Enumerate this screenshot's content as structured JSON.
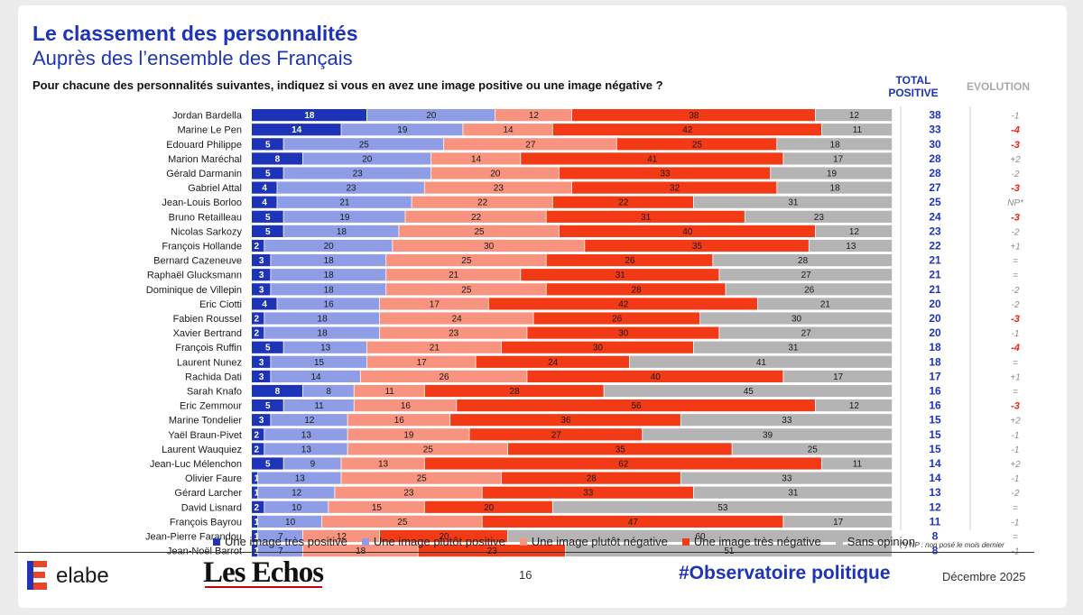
{
  "header": {
    "title": "Le classement des personnalités",
    "subtitle": "Auprès des l’ensemble des Français",
    "question": "Pour chacune des personnalités suivantes, indiquez si vous en avez une image positive ou une image négative ?",
    "total_label_1": "TOTAL",
    "total_label_2": "POSITIVE",
    "evolution_label": "EVOLUTION"
  },
  "colors": {
    "tres_positive": "#1d34b8",
    "plutot_positive": "#8e9de6",
    "plutot_negative": "#f7937e",
    "tres_negative": "#f23b16",
    "sans_opinion": "#b4b4b4",
    "brand_blue": "#1d34b8",
    "negative_evol": "#e8201a"
  },
  "chart_data": {
    "type": "bar",
    "orientation": "horizontal-stacked-100",
    "categories": [
      "Jordan Bardella",
      "Marine Le Pen",
      "Edouard Philippe",
      "Marion Maréchal",
      "Gérald Darmanin",
      "Gabriel Attal",
      "Jean-Louis Borloo",
      "Bruno Retailleau",
      "Nicolas Sarkozy",
      "François Hollande",
      "Bernard Cazeneuve",
      "Raphaël Glucksmann",
      "Dominique de Villepin",
      "Eric Ciotti",
      "Fabien Roussel",
      "Xavier Bertrand",
      "François Ruffin",
      "Laurent Nunez",
      "Rachida Dati",
      "Sarah Knafo",
      "Eric Zemmour",
      "Marine Tondelier",
      "Yaël Braun-Pivet",
      "Laurent Wauquiez",
      "Jean-Luc Mélenchon",
      "Olivier Faure",
      "Gérard Larcher",
      "David Lisnard",
      "François Bayrou",
      "Jean-Pierre Farandou",
      "Jean-Noël Barrot"
    ],
    "series": [
      {
        "name": "Une image très positive",
        "values": [
          18,
          14,
          5,
          8,
          5,
          4,
          4,
          5,
          5,
          2,
          3,
          3,
          3,
          4,
          2,
          2,
          5,
          3,
          3,
          8,
          5,
          3,
          2,
          2,
          5,
          1,
          1,
          2,
          1,
          1,
          1
        ]
      },
      {
        "name": "Une image plutôt positive",
        "values": [
          20,
          19,
          25,
          20,
          23,
          23,
          21,
          19,
          18,
          20,
          18,
          18,
          18,
          16,
          18,
          18,
          13,
          15,
          14,
          8,
          11,
          12,
          13,
          13,
          9,
          13,
          12,
          10,
          10,
          7,
          7
        ]
      },
      {
        "name": "Une image plutôt négative",
        "values": [
          12,
          14,
          27,
          14,
          20,
          23,
          22,
          22,
          25,
          30,
          25,
          21,
          25,
          17,
          24,
          23,
          21,
          17,
          26,
          11,
          16,
          16,
          19,
          25,
          13,
          25,
          23,
          15,
          25,
          12,
          18
        ]
      },
      {
        "name": "Une image très négative",
        "values": [
          38,
          42,
          25,
          41,
          33,
          32,
          22,
          31,
          40,
          35,
          26,
          31,
          28,
          42,
          26,
          30,
          30,
          24,
          40,
          28,
          56,
          36,
          27,
          35,
          62,
          28,
          33,
          20,
          47,
          20,
          23
        ]
      },
      {
        "name": "Sans opinion",
        "values": [
          12,
          11,
          18,
          17,
          19,
          18,
          31,
          23,
          12,
          13,
          28,
          27,
          26,
          21,
          30,
          27,
          31,
          41,
          17,
          45,
          12,
          33,
          39,
          25,
          11,
          33,
          31,
          53,
          17,
          60,
          51
        ]
      }
    ],
    "total_positive": [
      38,
      33,
      30,
      28,
      28,
      27,
      25,
      24,
      23,
      22,
      21,
      21,
      21,
      20,
      20,
      20,
      18,
      18,
      17,
      16,
      16,
      15,
      15,
      15,
      14,
      14,
      13,
      12,
      11,
      8,
      8
    ],
    "evolution": [
      "-1",
      "-4",
      "-3",
      "+2",
      "-2",
      "-3",
      "NP*",
      "-3",
      "-2",
      "+1",
      "=",
      "=",
      "-2",
      "-2",
      "-3",
      "-1",
      "-4",
      "=",
      "+1",
      "=",
      "-3",
      "+2",
      "-1",
      "-1",
      "+2",
      "-1",
      "-2",
      "=",
      "-1",
      "=",
      "-1"
    ],
    "evolution_highlight": [
      false,
      true,
      true,
      false,
      false,
      true,
      false,
      true,
      false,
      false,
      false,
      false,
      false,
      false,
      true,
      false,
      true,
      false,
      false,
      false,
      true,
      false,
      false,
      false,
      false,
      false,
      false,
      false,
      false,
      false,
      false
    ],
    "xlim": [
      0,
      100
    ],
    "legend_position": "bottom"
  },
  "legend": [
    {
      "label": "Une image très positive",
      "color": "#1d34b8"
    },
    {
      "label": "Une image plutôt positive",
      "color": "#8e9de6"
    },
    {
      "label": "Une image plutôt négative",
      "color": "#f7937e"
    },
    {
      "label": "Une image très négative",
      "color": "#f23b16"
    },
    {
      "label": "Sans opinion",
      "color": "#b4b4b4"
    }
  ],
  "footer": {
    "footnote": "(*) NP : non posé le mois dernier",
    "brand": "elabe",
    "partner": "Les Echos",
    "page_number": "16",
    "hashtag": "#Observatoire politique",
    "date": "Décembre 2025"
  }
}
